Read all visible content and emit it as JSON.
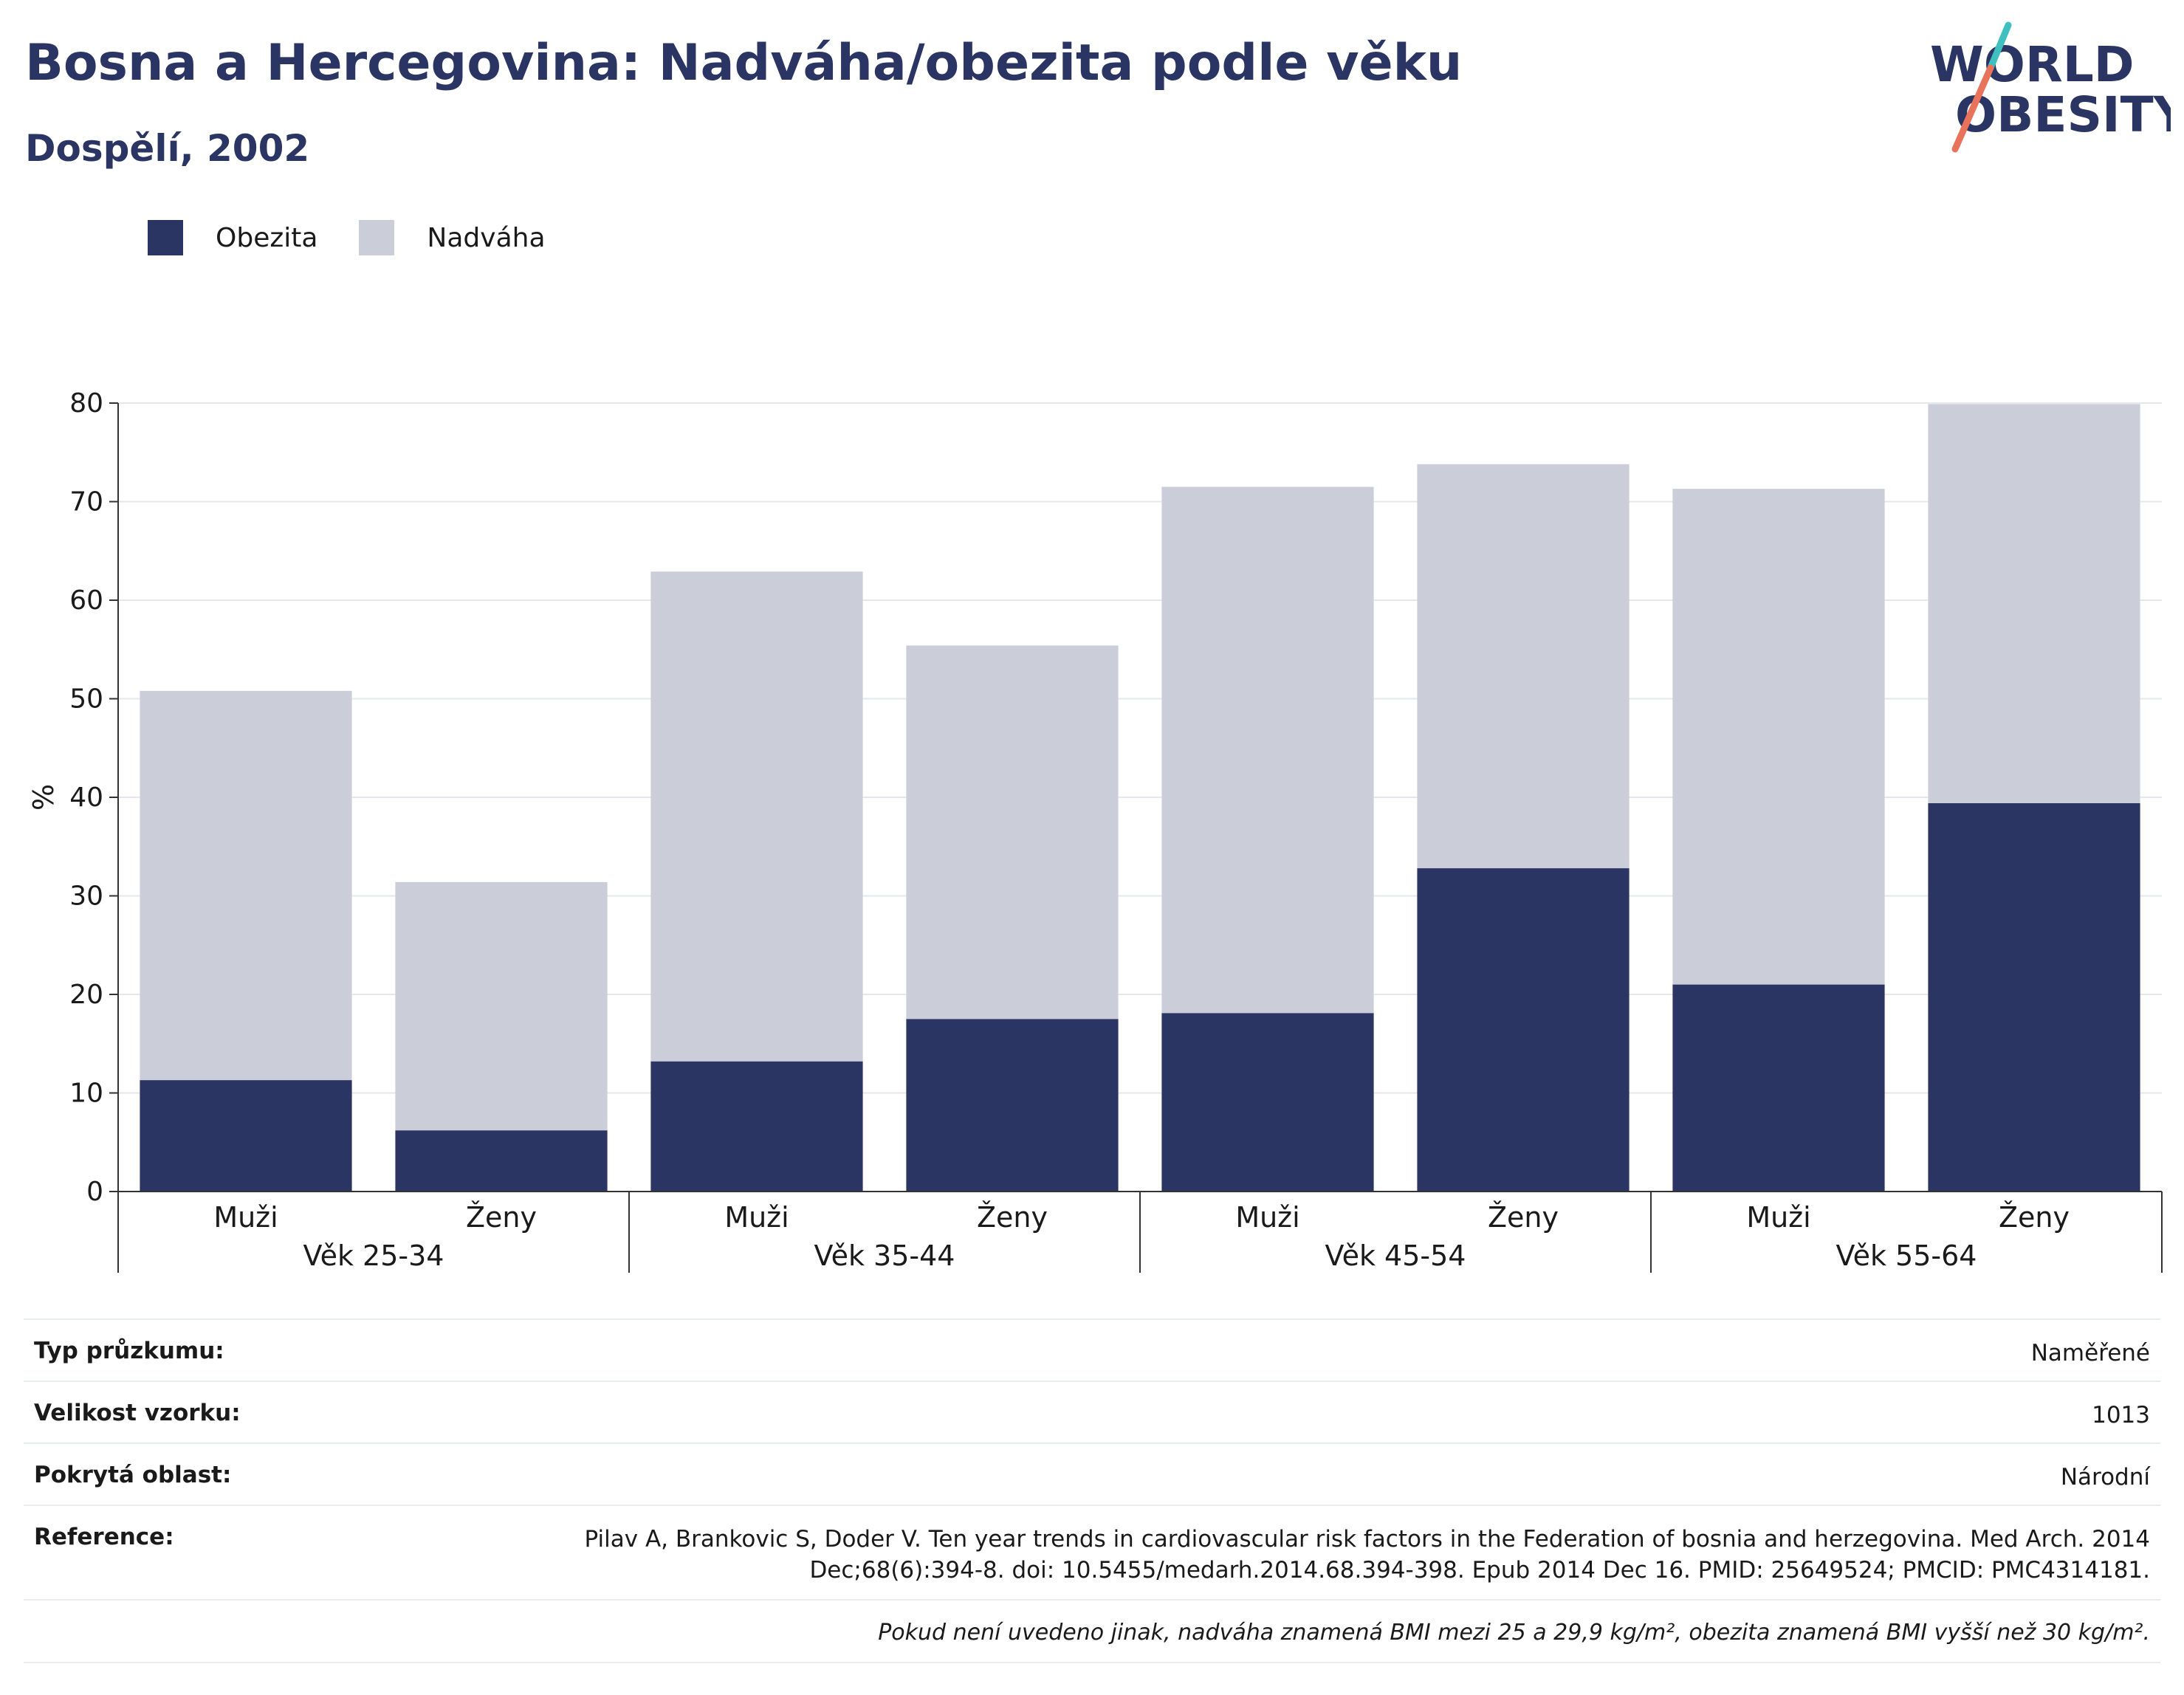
{
  "header": {
    "title": "Bosna a Hercegovina: Nadváha/obezita podle věku",
    "subtitle": "Dospělí, 2002"
  },
  "logo": {
    "line1": "WORLD",
    "line2": "OBESITY",
    "slash_colors": [
      "#3fbfbf",
      "#e8735a"
    ]
  },
  "colors": {
    "obesity": "#2a3563",
    "overweight": "#cbcdd9",
    "title": "#2a3563"
  },
  "chart_data": {
    "type": "bar",
    "stacked": true,
    "ylabel": "%",
    "ylim": [
      0,
      80
    ],
    "yticks": [
      0,
      10,
      20,
      30,
      40,
      50,
      60,
      70,
      80
    ],
    "grid": true,
    "legend_position": "top-left",
    "groups": [
      "Věk 25-34",
      "Věk 35-44",
      "Věk 45-54",
      "Věk 55-64"
    ],
    "categories": [
      "Muži",
      "Ženy",
      "Muži",
      "Ženy",
      "Muži",
      "Ženy",
      "Muži",
      "Ženy"
    ],
    "series": [
      {
        "name": "Obezita",
        "values": [
          11.3,
          6.2,
          13.2,
          17.5,
          18.1,
          32.8,
          21.0,
          39.4
        ]
      },
      {
        "name": "Nadváha",
        "values": [
          39.5,
          25.2,
          49.7,
          37.9,
          53.4,
          41.0,
          50.3,
          40.5
        ]
      }
    ]
  },
  "info": {
    "rows": [
      {
        "label": "Typ průzkumu:",
        "value": "Naměřené"
      },
      {
        "label": "Velikost vzorku:",
        "value": "1013"
      },
      {
        "label": "Pokrytá oblast:",
        "value": "Národní"
      },
      {
        "label": "Reference:",
        "value_line1": "Pilav A, Brankovic S, Doder V. Ten year trends in cardiovascular risk factors in the Federation of bosnia and herzegovina. Med Arch. 2014",
        "value_line2": "Dec;68(6):394-8. doi: 10.5455/medarh.2014.68.394-398. Epub 2014 Dec 16. PMID: 25649524; PMCID: PMC4314181."
      }
    ],
    "note": "Pokud není uvedeno jinak, nadváha znamená BMI mezi 25 a 29,9 kg/m², obezita znamená BMI vyšší než 30 kg/m²."
  }
}
